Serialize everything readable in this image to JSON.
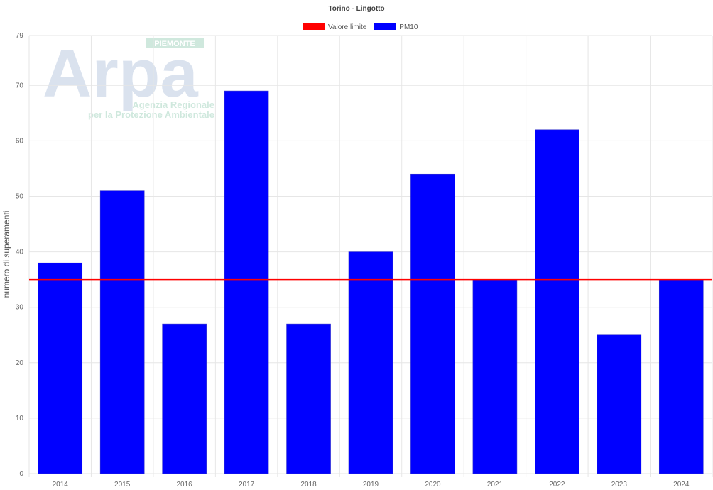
{
  "chart_data": {
    "type": "bar",
    "title": "Torino - Lingotto",
    "xlabel": "",
    "ylabel": "numero di superamenti",
    "ylim": [
      0,
      79
    ],
    "yticks": [
      0,
      10,
      20,
      30,
      40,
      50,
      60,
      70,
      79
    ],
    "grid": true,
    "legend_position": "top",
    "categories": [
      "2014",
      "2015",
      "2016",
      "2017",
      "2018",
      "2019",
      "2020",
      "2021",
      "2022",
      "2023",
      "2024"
    ],
    "series": [
      {
        "name": "PM10",
        "kind": "bar",
        "color": "#0000ff",
        "values": [
          38,
          51,
          27,
          69,
          27,
          40,
          54,
          35,
          62,
          25,
          35
        ]
      },
      {
        "name": "Valore limite",
        "kind": "line",
        "color": "#ff0000",
        "value": 35
      }
    ]
  },
  "watermark": {
    "logo_text": "Arpa",
    "badge": "PIEMONTE",
    "line1": "Agenzia Regionale",
    "line2": "per la Protezione Ambientale"
  }
}
